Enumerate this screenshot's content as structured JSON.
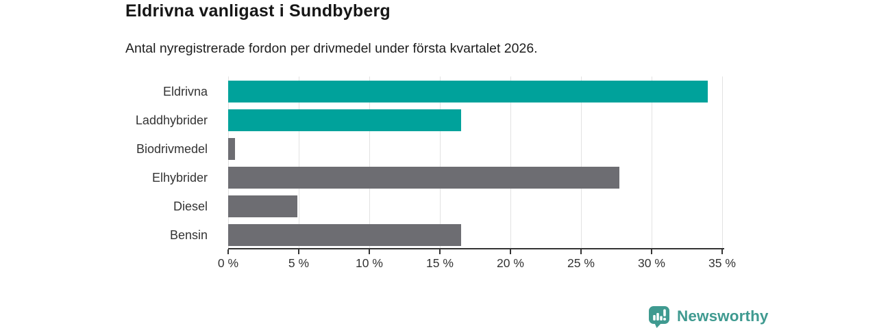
{
  "header": {
    "title": "Eldrivna vanligast i Sundbyberg",
    "subtitle": "Antal nyregistrerade fordon per drivmedel under första kvartalet 2026."
  },
  "chart_data": {
    "type": "bar",
    "orientation": "horizontal",
    "title": "Eldrivna vanligast i Sundbyberg",
    "subtitle": "Antal nyregistrerade fordon per drivmedel under första kvartalet 2026.",
    "categories": [
      "Eldrivna",
      "Laddhybrider",
      "Biodrivmedel",
      "Elhybrider",
      "Diesel",
      "Bensin"
    ],
    "values": [
      34.0,
      16.5,
      0.5,
      27.7,
      4.9,
      16.5
    ],
    "value_unit": "%",
    "xlim": [
      0,
      35
    ],
    "xticks": [
      0,
      5,
      10,
      15,
      20,
      25,
      30,
      35
    ],
    "xtick_suffix": " %",
    "grid": "vertical",
    "legend": "none",
    "colors": {
      "highlight": "#00a29b",
      "default": "#6d6d72",
      "per_bar": [
        "#00a29b",
        "#00a29b",
        "#6d6d72",
        "#6d6d72",
        "#6d6d72",
        "#6d6d72"
      ],
      "gridline": "#e2e2e2",
      "axis": "#333333"
    }
  },
  "branding": {
    "logo_text": "Newsworthy",
    "logo_color": "#3f9a90",
    "logo_icon": "bar-chart-pin-icon"
  }
}
